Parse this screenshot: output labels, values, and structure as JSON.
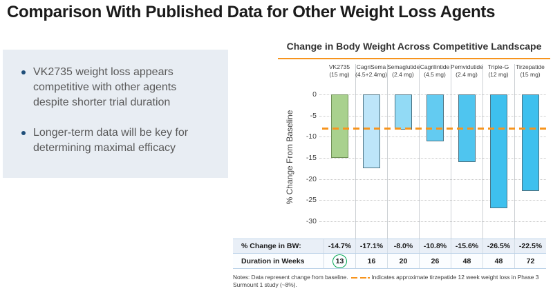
{
  "title": "Comparison With Published Data for Other Weight Loss Agents",
  "key_points": {
    "bullets": [
      "VK2735 weight loss appears competitive with other agents despite shorter trial duration",
      "Longer-term data will be key for determining maximal efficacy"
    ]
  },
  "chart_data": {
    "type": "bar",
    "title": "Change in Body Weight Across Competitive Landscape",
    "ylabel": "% Change From Baseline",
    "ylim": [
      -30,
      0
    ],
    "yticks": [
      0,
      -5,
      -10,
      -15,
      -20,
      -25,
      -30
    ],
    "grid": "dotted horizontal gridlines, solid vertical column separators",
    "legend_position": "none",
    "categories": [
      "VK2735",
      "CagriSema",
      "Semaglutide",
      "Cagrilintide",
      "Pemvidutide",
      "Triple-G",
      "Tirzepatide"
    ],
    "doses": [
      "(15 mg)",
      "(4.5+2.4mg)",
      "(2.4 mg)",
      "(4.5 mg)",
      "(2.4 mg)",
      "(12 mg)",
      "(15 mg)"
    ],
    "values": [
      -14.7,
      -17.1,
      -8.0,
      -10.8,
      -15.6,
      -26.5,
      -22.5
    ],
    "bar_fill_colors": [
      "#A9D18E",
      "#BDE5F9",
      "#92DAF5",
      "#63CBF1",
      "#4FC5EF",
      "#3EC0EE",
      "#3EC0EE"
    ],
    "bar_border_colors": [
      "#6E8F55",
      "#4B7282",
      "#4B7282",
      "#4B7282",
      "#4B7282",
      "#4B7282",
      "#4B7282"
    ],
    "reference_line": {
      "value": -8,
      "style": "dashed",
      "color": "#F7941D",
      "meaning": "approximate tirzepatide 12 week weight loss (~8%)"
    }
  },
  "table": {
    "rows": [
      {
        "label": "% Change in BW:",
        "values": [
          "-14.7%",
          "-17.1%",
          "-8.0%",
          "-10.8%",
          "-15.6%",
          "-26.5%",
          "-22.5%"
        ]
      },
      {
        "label": "Duration in Weeks",
        "values": [
          "13",
          "16",
          "20",
          "26",
          "48",
          "48",
          "72"
        ],
        "highlight_index": 0
      }
    ]
  },
  "notes": {
    "prefix": "Notes:  Data represent change from baseline.",
    "suffix": "Indicates approximate tirzepatide 12 week weight loss in Phase 3 Surmount 1 study (~8%)."
  },
  "colors": {
    "accent_orange": "#F7941D",
    "panel_bg": "#E8EDF3",
    "bullet_marker": "#1F4E79",
    "highlight_green": "#00A651",
    "vk2735_green": "#A9D18E"
  }
}
